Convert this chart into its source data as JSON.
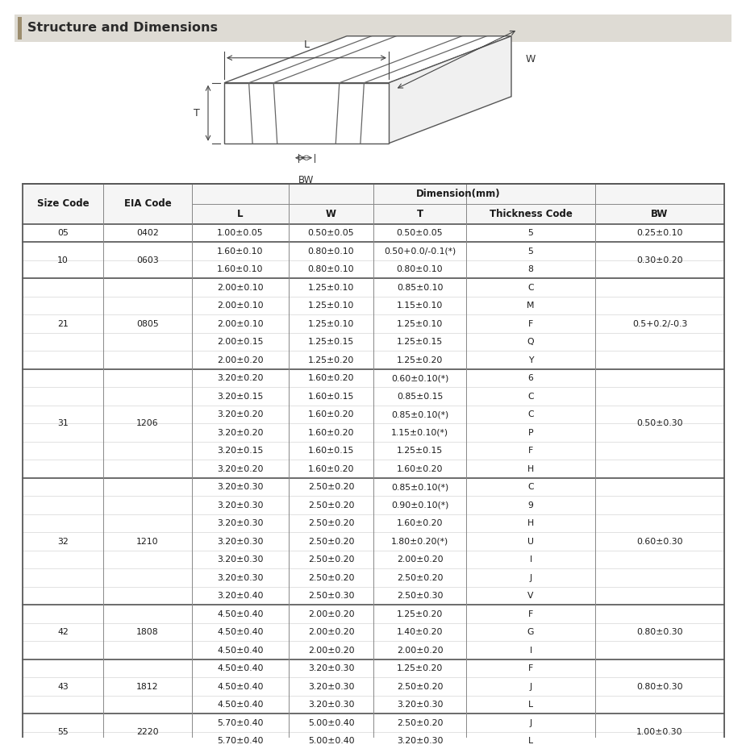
{
  "title": "Structure and Dimensions",
  "title_bar_color": "#dedbd4",
  "title_accent_color": "#9c8d6e",
  "background_color": "#ffffff",
  "col_headers": [
    "Size Code",
    "EIA Code",
    "L",
    "W",
    "T",
    "Thickness Code",
    "BW"
  ],
  "dimension_label": "Dimension(mm)",
  "rows": [
    [
      "05",
      "0402",
      "1.00±0.05",
      "0.50±0.05",
      "0.50±0.05",
      "5",
      "0.25±0.10"
    ],
    [
      "10",
      "0603",
      "1.60±0.10",
      "0.80±0.10",
      "0.50+0.0/-0.1(*)",
      "5",
      "0.30±0.20"
    ],
    [
      "",
      "",
      "1.60±0.10",
      "0.80±0.10",
      "0.80±0.10",
      "8",
      ""
    ],
    [
      "21",
      "0805",
      "2.00±0.10",
      "1.25±0.10",
      "0.85±0.10",
      "C",
      "0.5+0.2/-0.3"
    ],
    [
      "",
      "",
      "2.00±0.10",
      "1.25±0.10",
      "1.15±0.10",
      "M",
      ""
    ],
    [
      "",
      "",
      "2.00±0.10",
      "1.25±0.10",
      "1.25±0.10",
      "F",
      ""
    ],
    [
      "",
      "",
      "2.00±0.15",
      "1.25±0.15",
      "1.25±0.15",
      "Q",
      ""
    ],
    [
      "",
      "",
      "2.00±0.20",
      "1.25±0.20",
      "1.25±0.20",
      "Y",
      ""
    ],
    [
      "31",
      "1206",
      "3.20±0.20",
      "1.60±0.20",
      "0.60±0.10(*)",
      "6",
      "0.50±0.30"
    ],
    [
      "",
      "",
      "3.20±0.15",
      "1.60±0.15",
      "0.85±0.15",
      "C",
      ""
    ],
    [
      "",
      "",
      "3.20±0.20",
      "1.60±0.20",
      "0.85±0.10(*)",
      "C",
      ""
    ],
    [
      "",
      "",
      "3.20±0.20",
      "1.60±0.20",
      "1.15±0.10(*)",
      "P",
      ""
    ],
    [
      "",
      "",
      "3.20±0.15",
      "1.60±0.15",
      "1.25±0.15",
      "F",
      ""
    ],
    [
      "",
      "",
      "3.20±0.20",
      "1.60±0.20",
      "1.60±0.20",
      "H",
      ""
    ],
    [
      "32",
      "1210",
      "3.20±0.30",
      "2.50±0.20",
      "0.85±0.10(*)",
      "C",
      "0.60±0.30"
    ],
    [
      "",
      "",
      "3.20±0.30",
      "2.50±0.20",
      "0.90±0.10(*)",
      "9",
      ""
    ],
    [
      "",
      "",
      "3.20±0.30",
      "2.50±0.20",
      "1.60±0.20",
      "H",
      ""
    ],
    [
      "",
      "",
      "3.20±0.30",
      "2.50±0.20",
      "1.80±0.20(*)",
      "U",
      ""
    ],
    [
      "",
      "",
      "3.20±0.30",
      "2.50±0.20",
      "2.00±0.20",
      "I",
      ""
    ],
    [
      "",
      "",
      "3.20±0.30",
      "2.50±0.20",
      "2.50±0.20",
      "J",
      ""
    ],
    [
      "",
      "",
      "3.20±0.40",
      "2.50±0.30",
      "2.50±0.30",
      "V",
      ""
    ],
    [
      "42",
      "1808",
      "4.50±0.40",
      "2.00±0.20",
      "1.25±0.20",
      "F",
      "0.80±0.30"
    ],
    [
      "",
      "",
      "4.50±0.40",
      "2.00±0.20",
      "1.40±0.20",
      "G",
      ""
    ],
    [
      "",
      "",
      "4.50±0.40",
      "2.00±0.20",
      "2.00±0.20",
      "I",
      ""
    ],
    [
      "43",
      "1812",
      "4.50±0.40",
      "3.20±0.30",
      "1.25±0.20",
      "F",
      "0.80±0.30"
    ],
    [
      "",
      "",
      "4.50±0.40",
      "3.20±0.30",
      "2.50±0.20",
      "J",
      ""
    ],
    [
      "",
      "",
      "4.50±0.40",
      "3.20±0.30",
      "3.20±0.30",
      "L",
      ""
    ],
    [
      "55",
      "2220",
      "5.70±0.40",
      "5.00±0.40",
      "2.50±0.20",
      "J",
      "1.00±0.30"
    ],
    [
      "",
      "",
      "5.70±0.40",
      "5.00±0.40",
      "3.20±0.30",
      "L",
      ""
    ]
  ],
  "group_list": [
    [
      "05",
      0,
      0,
      "0402",
      "0.25±0.10"
    ],
    [
      "10",
      1,
      2,
      "0603",
      "0.30±0.20"
    ],
    [
      "21",
      3,
      7,
      "0805",
      "0.5+0.2/-0.3"
    ],
    [
      "31",
      8,
      13,
      "1206",
      "0.50±0.30"
    ],
    [
      "32",
      14,
      20,
      "1210",
      "0.60±0.30"
    ],
    [
      "42",
      21,
      23,
      "1808",
      "0.80±0.30"
    ],
    [
      "43",
      24,
      26,
      "1812",
      "0.80±0.30"
    ],
    [
      "55",
      27,
      28,
      "2220",
      "1.00±0.30"
    ]
  ],
  "font_size": 7.8,
  "header_font_size": 8.5
}
